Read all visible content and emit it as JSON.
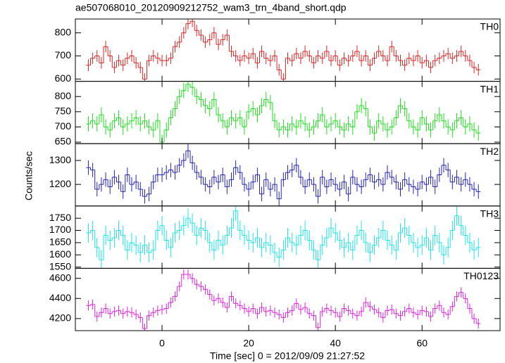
{
  "chart_data": {
    "type": "step",
    "title": "ae507068010_20120909212752_wam3_trn_4band_short.qdp",
    "xlabel": "Time [sec] 0 = 2012/09/09 21:27:52",
    "ylabel": "Counts/sec",
    "xlim": [
      -20,
      78
    ],
    "xticks": [
      0,
      20,
      40,
      60
    ],
    "x": [
      -17,
      -16,
      -15,
      -14,
      -13,
      -12,
      -11,
      -10,
      -9,
      -8,
      -7,
      -6,
      -5,
      -4,
      -3,
      -2,
      -1,
      0,
      1,
      2,
      3,
      4,
      5,
      6,
      7,
      8,
      9,
      10,
      11,
      12,
      13,
      14,
      15,
      16,
      17,
      18,
      19,
      20,
      21,
      22,
      23,
      24,
      25,
      26,
      27,
      28,
      29,
      30,
      31,
      32,
      33,
      34,
      35,
      36,
      37,
      38,
      39,
      40,
      41,
      42,
      43,
      44,
      45,
      46,
      47,
      48,
      49,
      50,
      51,
      52,
      53,
      54,
      55,
      56,
      57,
      58,
      59,
      60,
      61,
      62,
      63,
      64,
      65,
      66,
      67,
      68,
      69,
      70,
      71,
      72,
      73
    ],
    "series": [
      {
        "name": "TH0",
        "color": "#e02424",
        "error": 25,
        "ylim": [
          590,
          860
        ],
        "yticks": [
          600,
          700,
          800
        ],
        "values": [
          660,
          690,
          700,
          670,
          740,
          700,
          650,
          680,
          660,
          690,
          700,
          670,
          650,
          600,
          680,
          700,
          690,
          680,
          680,
          690,
          740,
          760,
          800,
          840,
          850,
          810,
          790,
          760,
          770,
          800,
          750,
          770,
          790,
          720,
          700,
          680,
          700,
          690,
          710,
          670,
          720,
          690,
          680,
          700,
          640,
          600,
          690,
          680,
          710,
          690,
          720,
          700,
          670,
          700,
          690,
          720,
          680,
          700,
          660,
          690,
          680,
          700,
          720,
          680,
          700,
          660,
          690,
          720,
          700,
          680,
          740,
          700,
          680,
          660,
          690,
          680,
          700,
          670,
          680,
          650,
          680,
          690,
          700,
          710,
          690,
          700,
          720,
          700,
          680,
          650,
          640
        ]
      },
      {
        "name": "TH1",
        "color": "#1ee01e",
        "error": 25,
        "ylim": [
          645,
          850
        ],
        "yticks": [
          650,
          700,
          750,
          800
        ],
        "values": [
          710,
          720,
          710,
          740,
          700,
          690,
          720,
          730,
          700,
          710,
          720,
          730,
          710,
          720,
          700,
          690,
          720,
          650,
          690,
          730,
          760,
          800,
          820,
          840,
          830,
          800,
          790,
          770,
          760,
          790,
          740,
          720,
          700,
          730,
          720,
          730,
          700,
          750,
          760,
          740,
          770,
          790,
          780,
          720,
          690,
          700,
          690,
          710,
          700,
          720,
          710,
          690,
          700,
          720,
          740,
          700,
          710,
          720,
          700,
          690,
          710,
          700,
          750,
          770,
          760,
          700,
          680,
          720,
          710,
          690,
          700,
          730,
          770,
          760,
          720,
          700,
          690,
          730,
          710,
          690,
          720,
          740,
          720,
          700,
          690,
          720,
          730,
          700,
          710,
          690,
          680
        ]
      },
      {
        "name": "TH2",
        "color": "#2424c0",
        "error": 30,
        "ylim": [
          1110,
          1370
        ],
        "yticks": [
          1200,
          1300
        ],
        "values": [
          1270,
          1260,
          1180,
          1200,
          1220,
          1190,
          1230,
          1210,
          1170,
          1240,
          1200,
          1210,
          1180,
          1150,
          1160,
          1210,
          1240,
          1240,
          1250,
          1260,
          1250,
          1280,
          1300,
          1340,
          1290,
          1250,
          1230,
          1200,
          1190,
          1230,
          1210,
          1240,
          1190,
          1220,
          1270,
          1250,
          1200,
          1180,
          1210,
          1240,
          1160,
          1220,
          1180,
          1200,
          1140,
          1220,
          1250,
          1260,
          1280,
          1230,
          1190,
          1220,
          1200,
          1150,
          1230,
          1190,
          1220,
          1200,
          1180,
          1210,
          1160,
          1230,
          1200,
          1190,
          1220,
          1240,
          1210,
          1220,
          1200,
          1250,
          1230,
          1210,
          1180,
          1220,
          1200,
          1190,
          1180,
          1210,
          1200,
          1230,
          1190,
          1240,
          1280,
          1260,
          1210,
          1230,
          1200,
          1220,
          1200,
          1180,
          1170
        ]
      },
      {
        "name": "TH3",
        "color": "#1ee6e6",
        "error": 40,
        "ylim": [
          1545,
          1800
        ],
        "yticks": [
          1550,
          1600,
          1650,
          1700,
          1750
        ],
        "values": [
          1690,
          1700,
          1630,
          1580,
          1680,
          1660,
          1670,
          1700,
          1680,
          1620,
          1650,
          1640,
          1610,
          1640,
          1610,
          1620,
          1700,
          1720,
          1660,
          1630,
          1690,
          1700,
          1720,
          1750,
          1730,
          1680,
          1710,
          1700,
          1650,
          1620,
          1660,
          1640,
          1680,
          1710,
          1780,
          1700,
          1680,
          1660,
          1650,
          1670,
          1630,
          1650,
          1640,
          1610,
          1590,
          1620,
          1670,
          1650,
          1640,
          1680,
          1700,
          1660,
          1620,
          1580,
          1640,
          1670,
          1710,
          1690,
          1660,
          1630,
          1650,
          1620,
          1680,
          1700,
          1650,
          1610,
          1640,
          1670,
          1700,
          1660,
          1640,
          1620,
          1690,
          1710,
          1680,
          1650,
          1630,
          1640,
          1670,
          1620,
          1680,
          1650,
          1600,
          1630,
          1700,
          1760,
          1720,
          1680,
          1650,
          1620,
          1630
        ]
      },
      {
        "name": "TH0123",
        "color": "#e024e0",
        "error": 50,
        "ylim": [
          4080,
          4700
        ],
        "yticks": [
          4200,
          4400,
          4600
        ],
        "values": [
          4330,
          4340,
          4220,
          4260,
          4300,
          4250,
          4270,
          4280,
          4250,
          4270,
          4260,
          4240,
          4210,
          4100,
          4230,
          4260,
          4280,
          4290,
          4300,
          4360,
          4420,
          4520,
          4640,
          4640,
          4600,
          4540,
          4520,
          4490,
          4440,
          4380,
          4400,
          4360,
          4310,
          4420,
          4350,
          4330,
          4300,
          4270,
          4300,
          4250,
          4310,
          4270,
          4280,
          4260,
          4240,
          4210,
          4260,
          4280,
          4350,
          4290,
          4310,
          4250,
          4230,
          4110,
          4270,
          4300,
          4280,
          4260,
          4220,
          4300,
          4280,
          4250,
          4230,
          4270,
          4360,
          4320,
          4290,
          4260,
          4210,
          4280,
          4290,
          4250,
          4230,
          4270,
          4300,
          4260,
          4240,
          4280,
          4270,
          4220,
          4300,
          4330,
          4260,
          4240,
          4320,
          4420,
          4460,
          4400,
          4300,
          4200,
          4150
        ]
      }
    ]
  }
}
